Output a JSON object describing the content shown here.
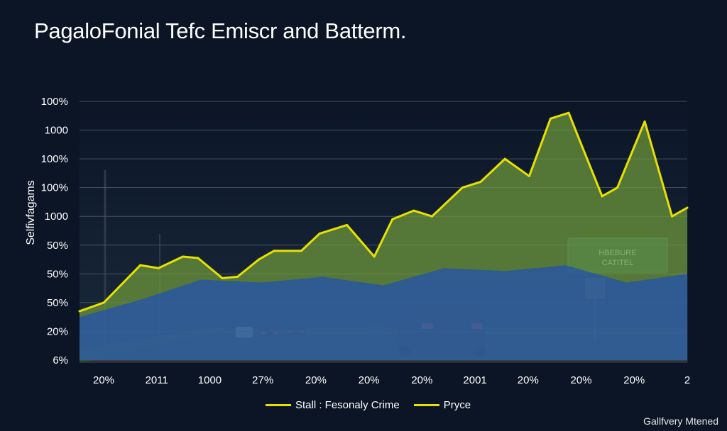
{
  "chart_data": {
    "type": "area",
    "title": "PagaloFonial Tefc Emiscr and Batterm.",
    "ylabel": "Selfivfagams",
    "xlabel": "",
    "ytick_labels": [
      "100%",
      "1000",
      "100%",
      "100%",
      "1000",
      "50%",
      "50%",
      "50%",
      "20%",
      "6%"
    ],
    "xtick_labels": [
      "20%",
      "2011",
      "1000",
      "27%",
      "20%",
      "20%",
      "20%",
      "2001",
      "20%",
      "20%",
      "20%",
      "2"
    ],
    "ylim": [
      0,
      9
    ],
    "xlim": [
      0,
      10
    ],
    "grid": true,
    "legend_position": "bottom",
    "series": [
      {
        "name": "Stall : Fesonaly Crime",
        "color": "#e8e000",
        "fill": "#6f9a3a",
        "x": [
          0,
          0.4,
          1.0,
          1.3,
          1.7,
          1.95,
          2.35,
          2.6,
          2.95,
          3.2,
          3.65,
          3.95,
          4.4,
          4.85,
          5.15,
          5.5,
          5.8,
          6.3,
          6.6,
          7.0,
          7.4,
          7.75,
          8.05,
          8.2,
          8.6,
          8.85,
          9.3,
          9.75,
          10.0
        ],
        "y": [
          1.7,
          2.0,
          3.3,
          3.2,
          3.6,
          3.55,
          2.85,
          2.9,
          3.5,
          3.8,
          3.8,
          4.4,
          4.7,
          3.6,
          4.9,
          5.2,
          5.0,
          6.0,
          6.2,
          7.0,
          6.4,
          8.4,
          8.6,
          7.8,
          5.7,
          6.0,
          8.3,
          5.0,
          5.3
        ]
      },
      {
        "name": "Pryce",
        "color": "#1f4fb8",
        "fill": "#1f4fb8",
        "x": [
          0,
          1.0,
          2.0,
          3.0,
          4.0,
          5.0,
          6.0,
          7.0,
          8.0,
          9.0,
          10.0
        ],
        "y": [
          1.5,
          2.1,
          2.8,
          2.7,
          2.9,
          2.6,
          3.2,
          3.1,
          3.3,
          2.7,
          3.0
        ]
      }
    ]
  },
  "watermark": "Gallfvery Mtened"
}
